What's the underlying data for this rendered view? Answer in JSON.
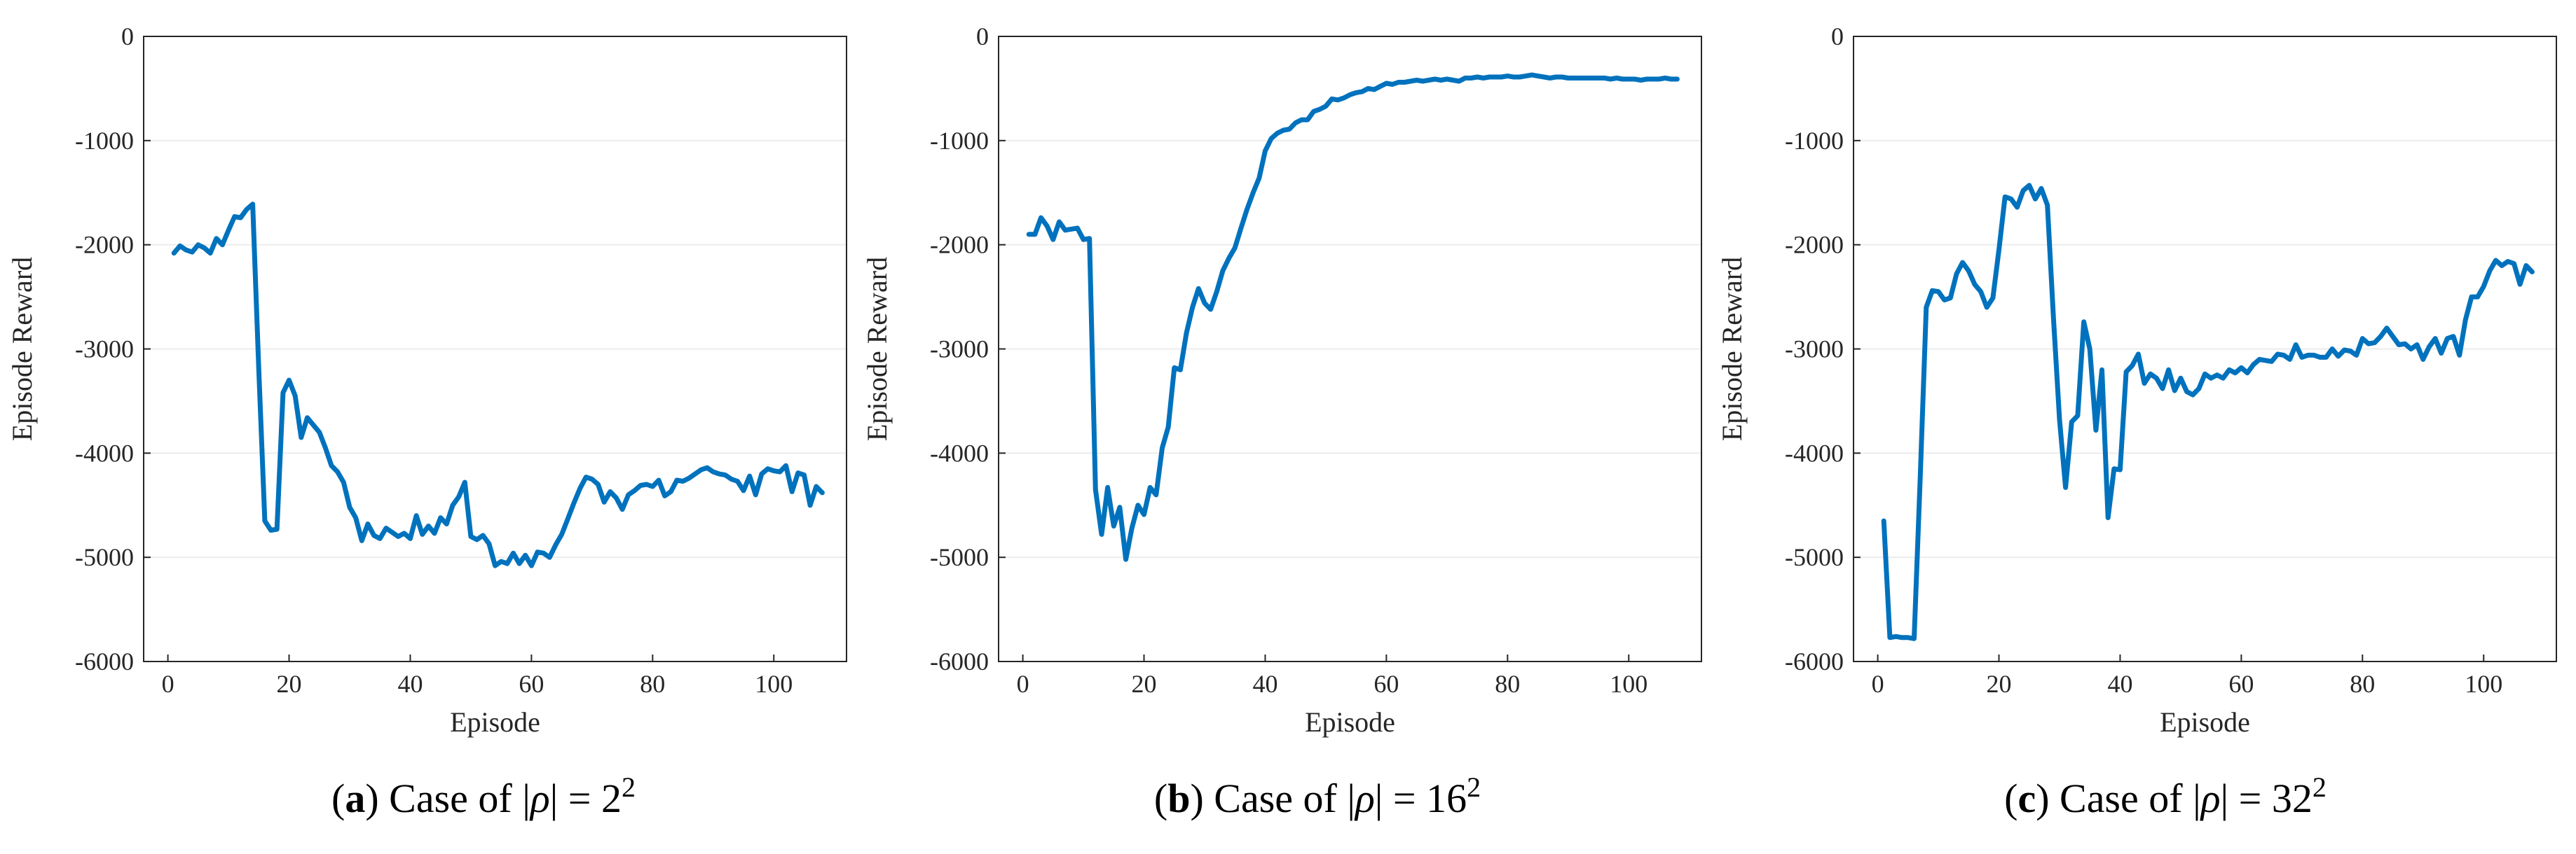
{
  "chart_data": [
    {
      "type": "line",
      "caption": {
        "letter": "a",
        "prefix": "Case of ",
        "rho": "ρ",
        "equals": " = ",
        "base": "2",
        "exp": "2"
      },
      "xlabel": "Episode",
      "ylabel": "Episode Reward",
      "xlim": [
        -4,
        112
      ],
      "ylim": [
        -6000,
        0
      ],
      "xticks": [
        0,
        20,
        40,
        60,
        80,
        100
      ],
      "yticks": [
        -6000,
        -5000,
        -4000,
        -3000,
        -2000,
        -1000,
        0
      ],
      "grid": "horizontal",
      "color": "#0072BD",
      "series": [
        {
          "x": [
            1,
            2,
            3,
            4,
            5,
            6,
            7,
            8,
            9,
            10,
            11,
            12,
            13,
            14,
            15,
            16,
            17,
            18,
            19,
            20,
            21,
            22,
            23,
            24,
            25,
            26,
            27,
            28,
            29,
            30,
            31,
            32,
            33,
            34,
            35,
            36,
            37,
            38,
            39,
            40,
            41,
            42,
            43,
            44,
            45,
            46,
            47,
            48,
            49,
            50,
            51,
            52,
            53,
            54,
            55,
            56,
            57,
            58,
            59,
            60,
            61,
            62,
            63,
            64,
            65,
            66,
            67,
            68,
            69,
            70,
            71,
            72,
            73,
            74,
            75,
            76,
            77,
            78,
            79,
            80,
            81,
            82,
            83,
            84,
            85,
            86,
            87,
            88,
            89,
            90,
            91,
            92,
            93,
            94,
            95,
            96,
            97,
            98,
            99,
            100,
            101,
            102,
            103,
            104,
            105,
            106,
            107,
            108
          ],
          "y": [
            -2080,
            -2010,
            -2050,
            -2070,
            -2000,
            -2030,
            -2080,
            -1940,
            -2000,
            -1860,
            -1730,
            -1740,
            -1660,
            -1610,
            -3200,
            -4650,
            -4740,
            -4730,
            -3420,
            -3300,
            -3450,
            -3850,
            -3660,
            -3730,
            -3800,
            -3950,
            -4120,
            -4180,
            -4280,
            -4520,
            -4620,
            -4840,
            -4680,
            -4790,
            -4820,
            -4720,
            -4760,
            -4800,
            -4770,
            -4820,
            -4600,
            -4780,
            -4700,
            -4770,
            -4620,
            -4680,
            -4500,
            -4420,
            -4280,
            -4800,
            -4830,
            -4790,
            -4870,
            -5080,
            -5040,
            -5060,
            -4960,
            -5060,
            -4980,
            -5080,
            -4950,
            -4960,
            -5000,
            -4880,
            -4780,
            -4630,
            -4480,
            -4340,
            -4230,
            -4250,
            -4300,
            -4470,
            -4370,
            -4430,
            -4540,
            -4400,
            -4360,
            -4310,
            -4300,
            -4320,
            -4260,
            -4410,
            -4370,
            -4260,
            -4270,
            -4240,
            -4200,
            -4160,
            -4140,
            -4180,
            -4200,
            -4210,
            -4250,
            -4270,
            -4360,
            -4220,
            -4400,
            -4200,
            -4150,
            -4170,
            -4180,
            -4120,
            -4370,
            -4190,
            -4210,
            -4500,
            -4320,
            -4380
          ]
        }
      ]
    },
    {
      "type": "line",
      "caption": {
        "letter": "b",
        "prefix": "Case of ",
        "rho": "ρ",
        "equals": " = ",
        "base": "16",
        "exp": "2"
      },
      "xlabel": "Episode",
      "ylabel": "Episode Reward",
      "xlim": [
        -4,
        112
      ],
      "ylim": [
        -6000,
        0
      ],
      "xticks": [
        0,
        20,
        40,
        60,
        80,
        100
      ],
      "yticks": [
        -6000,
        -5000,
        -4000,
        -3000,
        -2000,
        -1000,
        0
      ],
      "grid": "horizontal",
      "color": "#0072BD",
      "series": [
        {
          "x": [
            1,
            2,
            3,
            4,
            5,
            6,
            7,
            8,
            9,
            10,
            11,
            12,
            13,
            14,
            15,
            16,
            17,
            18,
            19,
            20,
            21,
            22,
            23,
            24,
            25,
            26,
            27,
            28,
            29,
            30,
            31,
            32,
            33,
            34,
            35,
            36,
            37,
            38,
            39,
            40,
            41,
            42,
            43,
            44,
            45,
            46,
            47,
            48,
            49,
            50,
            51,
            52,
            53,
            54,
            55,
            56,
            57,
            58,
            59,
            60,
            61,
            62,
            63,
            64,
            65,
            66,
            67,
            68,
            69,
            70,
            71,
            72,
            73,
            74,
            75,
            76,
            77,
            78,
            79,
            80,
            81,
            82,
            83,
            84,
            85,
            86,
            87,
            88,
            89,
            90,
            91,
            92,
            93,
            94,
            95,
            96,
            97,
            98,
            99,
            100,
            101,
            102,
            103,
            104,
            105,
            106,
            107,
            108
          ],
          "y": [
            -1900,
            -1900,
            -1740,
            -1820,
            -1950,
            -1780,
            -1860,
            -1850,
            -1840,
            -1950,
            -1940,
            -4350,
            -4780,
            -4330,
            -4700,
            -4520,
            -5020,
            -4720,
            -4500,
            -4590,
            -4330,
            -4400,
            -3950,
            -3750,
            -3180,
            -3200,
            -2850,
            -2600,
            -2420,
            -2560,
            -2620,
            -2450,
            -2250,
            -2130,
            -2030,
            -1840,
            -1660,
            -1500,
            -1360,
            -1100,
            -980,
            -930,
            -900,
            -890,
            -830,
            -800,
            -800,
            -720,
            -700,
            -670,
            -600,
            -610,
            -590,
            -560,
            -540,
            -530,
            -500,
            -510,
            -480,
            -450,
            -460,
            -440,
            -440,
            -430,
            -420,
            -430,
            -420,
            -410,
            -420,
            -410,
            -420,
            -430,
            -400,
            -400,
            -390,
            -400,
            -390,
            -390,
            -390,
            -380,
            -390,
            -390,
            -380,
            -370,
            -380,
            -390,
            -400,
            -390,
            -390,
            -400,
            -400,
            -400,
            -400,
            -400,
            -400,
            -400,
            -410,
            -400,
            -410,
            -410,
            -410,
            -420,
            -410,
            -410,
            -410,
            -400,
            -410,
            -410
          ]
        }
      ]
    },
    {
      "type": "line",
      "caption": {
        "letter": "c",
        "prefix": "Case of ",
        "rho": "ρ",
        "equals": " = ",
        "base": "32",
        "exp": "2"
      },
      "xlabel": "Episode",
      "ylabel": "Episode Reward",
      "xlim": [
        -4,
        112
      ],
      "ylim": [
        -6000,
        0
      ],
      "xticks": [
        0,
        20,
        40,
        60,
        80,
        100
      ],
      "yticks": [
        -6000,
        -5000,
        -4000,
        -3000,
        -2000,
        -1000,
        0
      ],
      "grid": "horizontal",
      "color": "#0072BD",
      "series": [
        {
          "x": [
            1,
            2,
            3,
            4,
            5,
            6,
            7,
            8,
            9,
            10,
            11,
            12,
            13,
            14,
            15,
            16,
            17,
            18,
            19,
            20,
            21,
            22,
            23,
            24,
            25,
            26,
            27,
            28,
            29,
            30,
            31,
            32,
            33,
            34,
            35,
            36,
            37,
            38,
            39,
            40,
            41,
            42,
            43,
            44,
            45,
            46,
            47,
            48,
            49,
            50,
            51,
            52,
            53,
            54,
            55,
            56,
            57,
            58,
            59,
            60,
            61,
            62,
            63,
            64,
            65,
            66,
            67,
            68,
            69,
            70,
            71,
            72,
            73,
            74,
            75,
            76,
            77,
            78,
            79,
            80,
            81,
            82,
            83,
            84,
            85,
            86,
            87,
            88,
            89,
            90,
            91,
            92,
            93,
            94,
            95,
            96,
            97,
            98,
            99,
            100,
            101,
            102,
            103,
            104,
            105,
            106,
            107,
            108
          ],
          "y": [
            -4650,
            -5770,
            -5760,
            -5770,
            -5770,
            -5780,
            -4250,
            -2600,
            -2440,
            -2450,
            -2530,
            -2510,
            -2280,
            -2170,
            -2250,
            -2380,
            -2450,
            -2600,
            -2510,
            -2050,
            -1540,
            -1560,
            -1640,
            -1480,
            -1430,
            -1560,
            -1460,
            -1620,
            -2700,
            -3680,
            -4330,
            -3700,
            -3640,
            -2740,
            -3000,
            -3780,
            -3200,
            -4620,
            -4150,
            -4160,
            -3220,
            -3160,
            -3050,
            -3330,
            -3240,
            -3280,
            -3380,
            -3200,
            -3400,
            -3280,
            -3410,
            -3440,
            -3380,
            -3240,
            -3280,
            -3250,
            -3280,
            -3200,
            -3230,
            -3180,
            -3230,
            -3150,
            -3100,
            -3110,
            -3120,
            -3050,
            -3060,
            -3100,
            -2960,
            -3080,
            -3060,
            -3060,
            -3080,
            -3080,
            -3000,
            -3070,
            -3010,
            -3020,
            -3060,
            -2900,
            -2950,
            -2940,
            -2880,
            -2800,
            -2880,
            -2960,
            -2950,
            -3000,
            -2960,
            -3100,
            -2980,
            -2900,
            -3040,
            -2900,
            -2880,
            -3060,
            -2720,
            -2500,
            -2500,
            -2400,
            -2250,
            -2150,
            -2200,
            -2160,
            -2180,
            -2380,
            -2200,
            -2260
          ]
        }
      ]
    }
  ]
}
